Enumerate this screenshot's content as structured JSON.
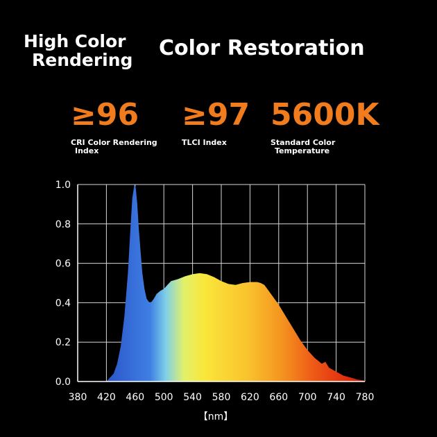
{
  "header": {
    "left_line1": "High Color",
    "left_line2": "Rendering",
    "right_title": "Color Restoration"
  },
  "metrics": [
    {
      "value": "≥96",
      "caption_line1": "CRI Color Rendering",
      "caption_line2": "Index"
    },
    {
      "value": "≥97",
      "caption_line1": "TLCI Index",
      "caption_line2": ""
    },
    {
      "value": "5600K",
      "caption_line1": "Standard Color",
      "caption_line2": "Temperature"
    }
  ],
  "colors": {
    "accent": "#f07c1e",
    "background": "#000000",
    "grid": "#ffffff"
  },
  "chart_data": {
    "type": "area",
    "xlabel": "【nm】",
    "ylabel": "",
    "xlim": [
      380,
      780
    ],
    "ylim": [
      0,
      1.0
    ],
    "xticks": [
      380,
      420,
      460,
      500,
      540,
      580,
      620,
      660,
      700,
      740,
      780
    ],
    "yticks": [
      "0.0",
      "0.2",
      "0.4",
      "0.6",
      "0.8",
      "1.0"
    ],
    "grid": true,
    "x": [
      380,
      400,
      420,
      430,
      435,
      440,
      445,
      450,
      453,
      456,
      459,
      461,
      463,
      465,
      468,
      470,
      473,
      476,
      480,
      483,
      486,
      490,
      495,
      500,
      505,
      510,
      520,
      530,
      540,
      550,
      560,
      570,
      580,
      590,
      600,
      610,
      620,
      630,
      635,
      640,
      650,
      660,
      670,
      680,
      690,
      700,
      710,
      720,
      725,
      730,
      740,
      750,
      760,
      770,
      780
    ],
    "values": [
      0,
      0,
      0,
      0.04,
      0.09,
      0.18,
      0.33,
      0.55,
      0.75,
      0.93,
      1.0,
      0.98,
      0.9,
      0.78,
      0.64,
      0.55,
      0.47,
      0.42,
      0.4,
      0.405,
      0.42,
      0.445,
      0.46,
      0.47,
      0.49,
      0.51,
      0.52,
      0.535,
      0.545,
      0.55,
      0.545,
      0.53,
      0.51,
      0.495,
      0.49,
      0.5,
      0.505,
      0.505,
      0.5,
      0.49,
      0.44,
      0.39,
      0.33,
      0.27,
      0.21,
      0.16,
      0.12,
      0.09,
      0.1,
      0.07,
      0.05,
      0.03,
      0.02,
      0.01,
      0.005
    ]
  }
}
